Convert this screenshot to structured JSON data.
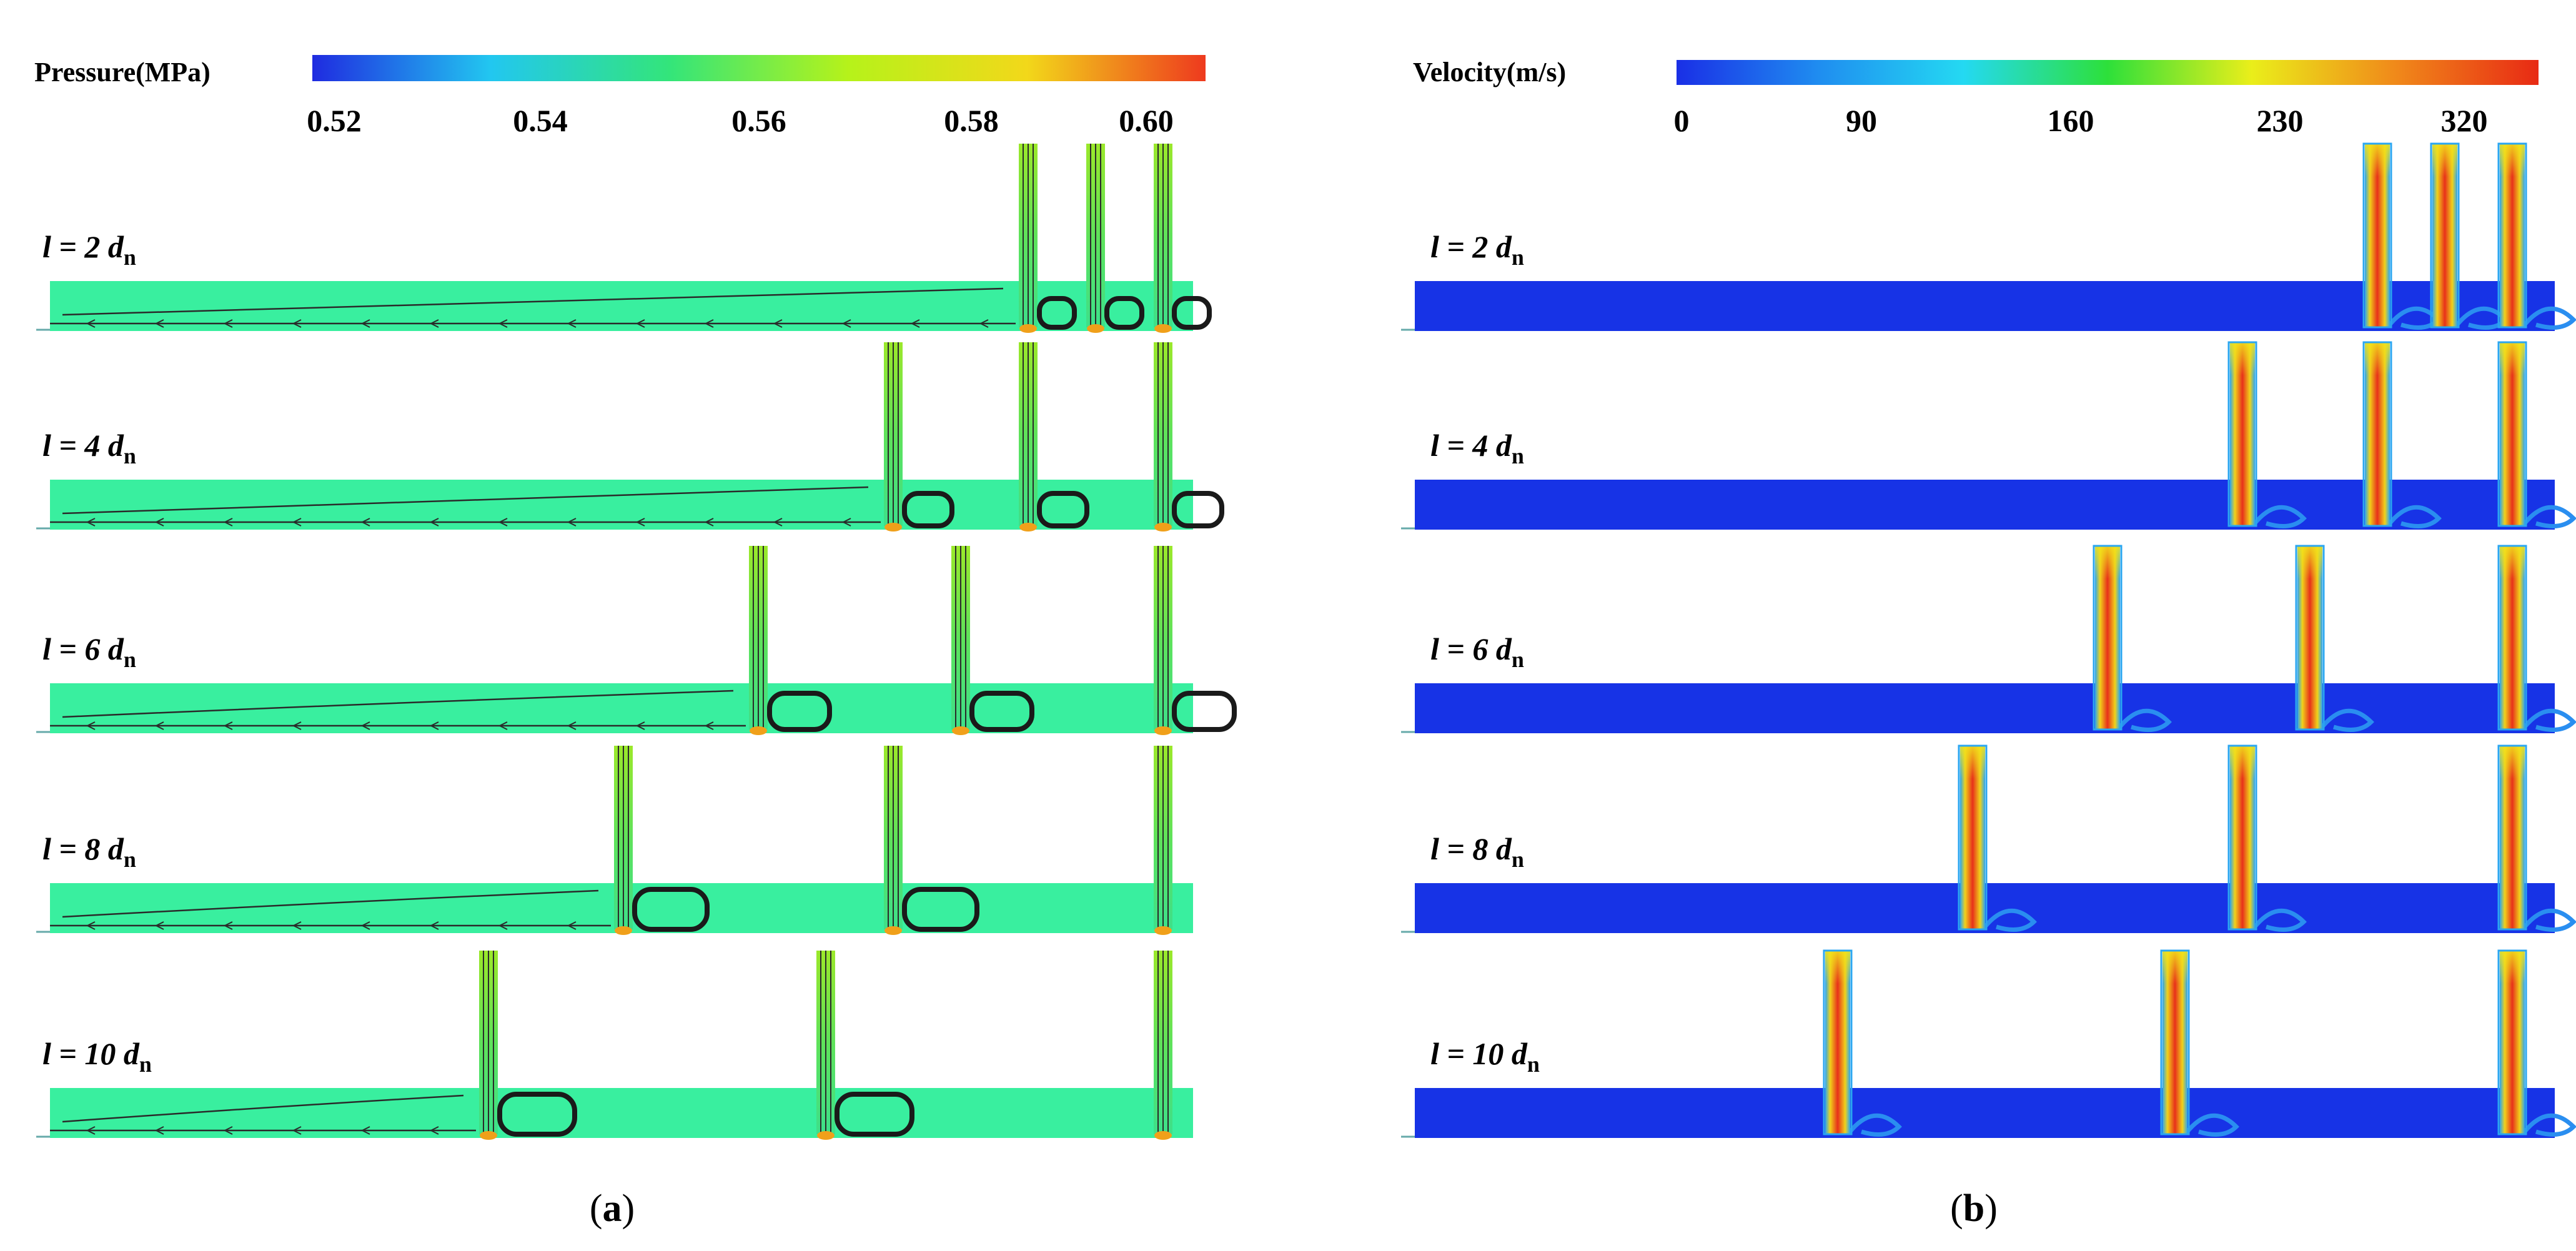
{
  "panel_a": {
    "colorbar": {
      "title": "Pressure(MPa)",
      "ticks": [
        "0.52",
        "0.54",
        "0.56",
        "0.58",
        "0.60"
      ],
      "colors": [
        "#1f2be0",
        "#22c7f0",
        "#33e57a",
        "#b6f21a",
        "#f2d81a",
        "#ee3a1e"
      ]
    },
    "rows": [
      {
        "label": "l = 2 d",
        "sub": "n",
        "nozzle_spacing_dn": 2
      },
      {
        "label": "l = 4 d",
        "sub": "n",
        "nozzle_spacing_dn": 4
      },
      {
        "label": "l = 6 d",
        "sub": "n",
        "nozzle_spacing_dn": 6
      },
      {
        "label": "l = 8 d",
        "sub": "n",
        "nozzle_spacing_dn": 8
      },
      {
        "label": "l = 10 d",
        "sub": "n",
        "nozzle_spacing_dn": 10
      }
    ],
    "field_color": "#39ef9f",
    "caption_open": "(",
    "caption_letter": "a",
    "caption_close": ")"
  },
  "panel_b": {
    "colorbar": {
      "title": "Velocity(m/s)",
      "ticks": [
        "0",
        "90",
        "160",
        "230",
        "320"
      ],
      "colors": [
        "#1a2fe6",
        "#1f8ef0",
        "#24d9f2",
        "#2de03a",
        "#eaee1a",
        "#f08a1a",
        "#e82a14"
      ]
    },
    "rows": [
      {
        "label": "l = 2 d",
        "sub": "n",
        "nozzle_spacing_dn": 2
      },
      {
        "label": "l = 4 d",
        "sub": "n",
        "nozzle_spacing_dn": 4
      },
      {
        "label": "l = 6 d",
        "sub": "n",
        "nozzle_spacing_dn": 6
      },
      {
        "label": "l = 8 d",
        "sub": "n",
        "nozzle_spacing_dn": 8
      },
      {
        "label": "l = 10 d",
        "sub": "n",
        "nozzle_spacing_dn": 10
      }
    ],
    "field_color": "#1733e6",
    "caption_open": "(",
    "caption_letter": "b",
    "caption_close": ")"
  }
}
